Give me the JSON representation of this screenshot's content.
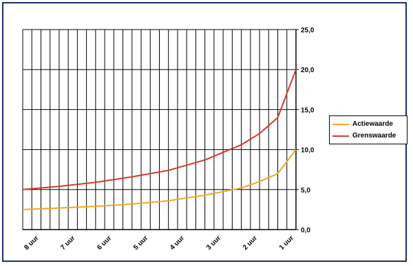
{
  "chart_data": {
    "type": "line",
    "title": "",
    "xlabel": "",
    "ylabel": "",
    "x_ticks": [
      "8 uur",
      "7 uur",
      "6 uur",
      "5 uur",
      "4 uur",
      "3 uur",
      "2 uur",
      "1 uur"
    ],
    "x_range": [
      8,
      0.5
    ],
    "ylim": [
      0,
      25
    ],
    "y_ticks": [
      "0,0",
      "5,0",
      "10,0",
      "15,0",
      "20,0",
      "25,0"
    ],
    "y_tick_values": [
      0,
      5,
      10,
      15,
      20,
      25
    ],
    "grid": true,
    "y_axis_side": "right",
    "legend": "right",
    "series": [
      {
        "name": "Actiewaarde",
        "color": "#f5a623",
        "x": [
          8,
          7,
          6,
          5,
          4,
          3,
          2,
          1.5,
          1,
          0.5
        ],
        "y": [
          2.5,
          2.7,
          2.9,
          3.2,
          3.6,
          4.3,
          5.2,
          6.0,
          7.0,
          10.0
        ]
      },
      {
        "name": "Grenswaarde",
        "color": "#d6382c",
        "x": [
          8,
          7,
          6,
          5,
          4,
          3,
          2,
          1.5,
          1,
          0.5
        ],
        "y": [
          5.0,
          5.4,
          5.9,
          6.6,
          7.4,
          8.7,
          10.6,
          12.0,
          14.0,
          20.0
        ]
      }
    ]
  }
}
